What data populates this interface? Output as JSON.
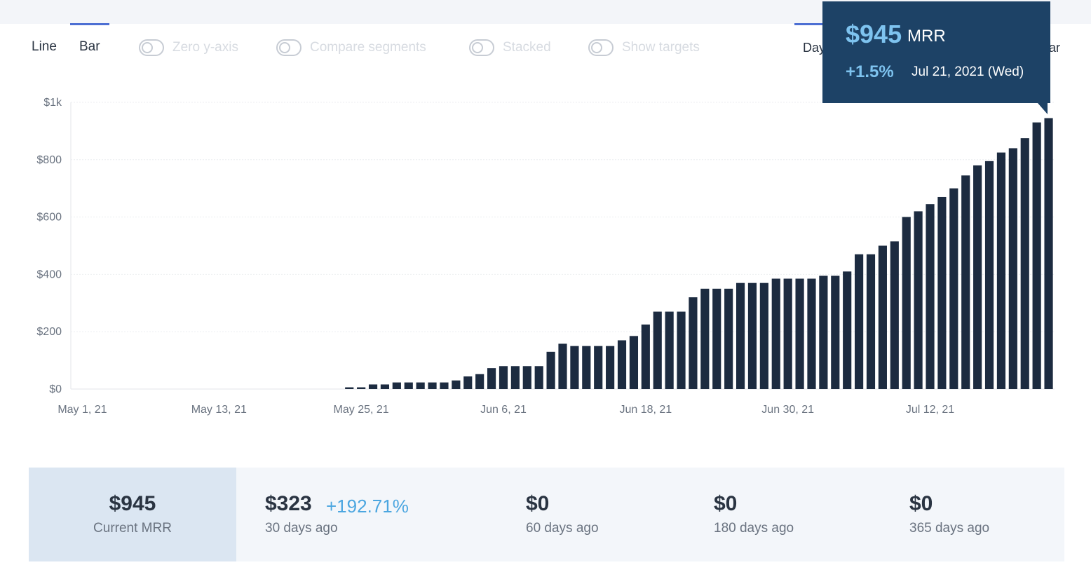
{
  "view_tabs": [
    {
      "label": "Line",
      "active": false
    },
    {
      "label": "Bar",
      "active": true
    }
  ],
  "toggles": [
    {
      "label": "Zero y-axis",
      "on": false
    },
    {
      "label": "Compare segments",
      "on": false
    },
    {
      "label": "Stacked",
      "on": false
    },
    {
      "label": "Show targets",
      "on": false
    }
  ],
  "period_tabs": {
    "day_label": "Day",
    "year_label_fragment": "ar"
  },
  "tooltip": {
    "value": "$945",
    "metric": "MRR",
    "change": "+1.5%",
    "date": "Jul 21, 2021 (Wed)"
  },
  "chart_data": {
    "type": "bar",
    "title": "",
    "xlabel": "",
    "ylabel": "",
    "ylim": [
      0,
      1000
    ],
    "y_ticks": [
      "$0",
      "$200",
      "$400",
      "$600",
      "$800",
      "$1k"
    ],
    "x_ticks": [
      "May 1, 21",
      "May 13, 21",
      "May 25, 21",
      "Jun 6, 21",
      "Jun 18, 21",
      "Jun 30, 21",
      "Jul 12, 21"
    ],
    "x_tick_indices": [
      0,
      12,
      24,
      36,
      48,
      60,
      72
    ],
    "start_date_label": "May 1, 21",
    "values": [
      0,
      0,
      0,
      0,
      0,
      0,
      0,
      0,
      0,
      0,
      0,
      0,
      0,
      0,
      0,
      0,
      0,
      0,
      0,
      0,
      0,
      0,
      0,
      6,
      6,
      16,
      16,
      23,
      23,
      23,
      23,
      23,
      30,
      44,
      52,
      73,
      80,
      80,
      80,
      80,
      130,
      158,
      150,
      150,
      150,
      150,
      170,
      185,
      225,
      270,
      270,
      270,
      320,
      350,
      350,
      350,
      370,
      370,
      370,
      385,
      385,
      385,
      385,
      395,
      395,
      410,
      470,
      470,
      500,
      515,
      600,
      620,
      645,
      670,
      700,
      745,
      780,
      795,
      825,
      840,
      875,
      930,
      945
    ],
    "bar_color": "#1c2b40",
    "grid": true
  },
  "stats": {
    "current": {
      "value": "$945",
      "label": "Current MRR"
    },
    "items": [
      {
        "value": "$323",
        "change": "+192.71%",
        "label": "30 days ago"
      },
      {
        "value": "$0",
        "label": "60 days ago"
      },
      {
        "value": "$0",
        "label": "180 days ago"
      },
      {
        "value": "$0",
        "label": "365 days ago"
      }
    ]
  }
}
